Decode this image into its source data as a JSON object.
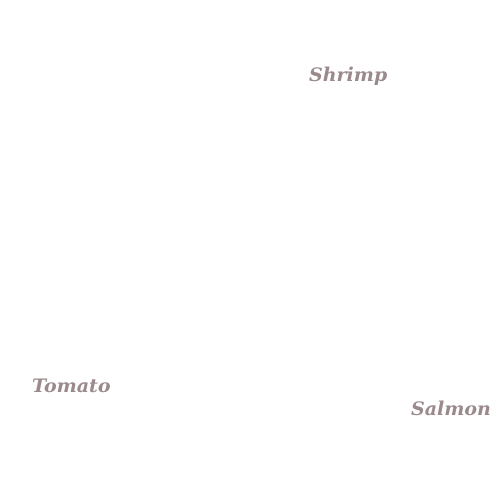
{
  "text_color": "#9a8a8c",
  "labels": [
    "Shrimp",
    "Tomato",
    "Salmon"
  ]
}
